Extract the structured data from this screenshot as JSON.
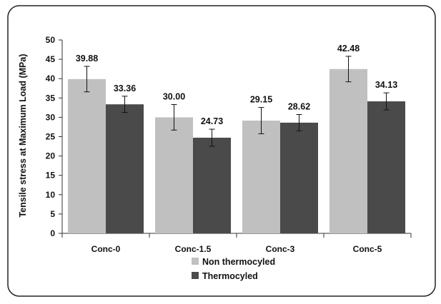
{
  "chart_data": {
    "type": "bar",
    "categories": [
      "Conc-0",
      "Conc-1.5",
      "Conc-3",
      "Conc-5"
    ],
    "series": [
      {
        "name": "Non thermocyled",
        "values": [
          39.88,
          30.0,
          29.15,
          42.48
        ],
        "value_labels": [
          "39.88",
          "30.00",
          "29.15",
          "42.48"
        ],
        "error": [
          3.3,
          3.3,
          3.4,
          3.3
        ],
        "color": "#c0c0c0"
      },
      {
        "name": "Thermocyled",
        "values": [
          33.36,
          24.73,
          28.62,
          34.13
        ],
        "value_labels": [
          "33.36",
          "24.73",
          "28.62",
          "34.13"
        ],
        "error": [
          2.1,
          2.2,
          2.1,
          2.2
        ],
        "color": "#4a4a4a"
      }
    ],
    "title": "",
    "xlabel": "",
    "ylabel": "Tensile stress at Maximum Load (MPa)",
    "ylim": [
      0,
      50
    ],
    "yticks": [
      "0",
      "5",
      "10",
      "15",
      "20",
      "25",
      "30",
      "35",
      "40",
      "45",
      "50"
    ],
    "grid": false,
    "legend_position": "bottom"
  }
}
